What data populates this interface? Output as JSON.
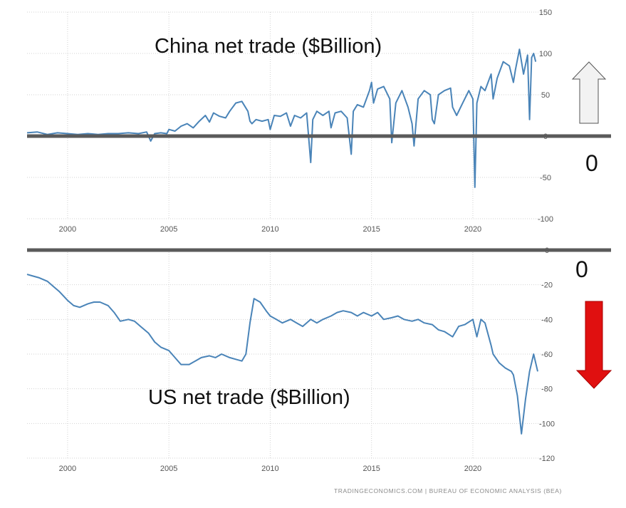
{
  "colors": {
    "line": "#4a84b8",
    "grid": "#d2d2d2",
    "axis_line": "#5a5a5a",
    "up_arrow": "#f2f2f2",
    "down_arrow": "#e01010"
  },
  "annotations": {
    "zero_top": "0",
    "zero_bottom": "0"
  },
  "footer": {
    "source": "TRADINGECONOMICS.COM | BUREAU OF ECONOMIC ANALYSIS (BEA)"
  },
  "chart_data": [
    {
      "type": "line",
      "title": "China net trade ($Billion)",
      "xlabel": "",
      "ylabel": "",
      "xlim": [
        1998.0,
        2023.2
      ],
      "ylim": [
        -100,
        150
      ],
      "x_ticks": [
        2000,
        2005,
        2010,
        2015,
        2020
      ],
      "y_ticks": [
        150,
        100,
        50,
        0,
        -50,
        -100
      ],
      "x_tick_labels": [
        "2000",
        "2005",
        "2010",
        "2015",
        "2020"
      ],
      "y_tick_labels": [
        "150",
        "100",
        "50",
        "0",
        "-50",
        "-100"
      ],
      "zero_line": 0,
      "series": [
        {
          "name": "China net trade",
          "x": [
            1998.0,
            1998.5,
            1999.0,
            1999.5,
            2000.0,
            2000.5,
            2001.0,
            2001.5,
            2002.0,
            2002.5,
            2003.0,
            2003.5,
            2003.9,
            2004.1,
            2004.3,
            2004.6,
            2004.9,
            2005.0,
            2005.3,
            2005.6,
            2005.9,
            2006.2,
            2006.5,
            2006.8,
            2007.0,
            2007.2,
            2007.5,
            2007.8,
            2008.0,
            2008.3,
            2008.6,
            2008.9,
            2009.0,
            2009.1,
            2009.3,
            2009.6,
            2009.9,
            2010.0,
            2010.2,
            2010.5,
            2010.8,
            2011.0,
            2011.2,
            2011.5,
            2011.8,
            2012.0,
            2012.1,
            2012.3,
            2012.6,
            2012.9,
            2013.0,
            2013.2,
            2013.5,
            2013.8,
            2014.0,
            2014.1,
            2014.3,
            2014.6,
            2014.9,
            2015.0,
            2015.1,
            2015.3,
            2015.6,
            2015.9,
            2016.0,
            2016.2,
            2016.5,
            2016.8,
            2017.0,
            2017.1,
            2017.3,
            2017.6,
            2017.9,
            2018.0,
            2018.1,
            2018.3,
            2018.6,
            2018.9,
            2019.0,
            2019.2,
            2019.5,
            2019.8,
            2020.0,
            2020.1,
            2020.2,
            2020.4,
            2020.6,
            2020.9,
            2021.0,
            2021.2,
            2021.5,
            2021.8,
            2022.0,
            2022.1,
            2022.3,
            2022.5,
            2022.7,
            2022.8,
            2022.9,
            2023.0,
            2023.1
          ],
          "values": [
            4,
            5,
            2,
            4,
            3,
            2,
            3,
            2,
            3,
            3,
            4,
            3,
            5,
            -6,
            3,
            4,
            3,
            8,
            6,
            12,
            15,
            10,
            18,
            25,
            17,
            28,
            24,
            22,
            30,
            40,
            42,
            30,
            18,
            15,
            20,
            18,
            20,
            8,
            25,
            24,
            28,
            12,
            25,
            22,
            28,
            -32,
            20,
            30,
            25,
            30,
            10,
            28,
            30,
            22,
            -22,
            30,
            38,
            35,
            55,
            65,
            40,
            57,
            60,
            45,
            -8,
            40,
            55,
            35,
            15,
            -12,
            45,
            55,
            50,
            20,
            15,
            50,
            55,
            58,
            35,
            25,
            40,
            55,
            45,
            -62,
            40,
            60,
            55,
            75,
            45,
            70,
            90,
            85,
            65,
            80,
            105,
            75,
            98,
            20,
            95,
            100,
            90
          ]
        }
      ]
    },
    {
      "type": "line",
      "title": "US net trade ($Billion)",
      "xlabel": "",
      "ylabel": "",
      "xlim": [
        1998.0,
        2023.2
      ],
      "ylim": [
        -120,
        0
      ],
      "x_ticks": [
        2000,
        2005,
        2010,
        2015,
        2020
      ],
      "y_ticks": [
        0,
        -20,
        -40,
        -60,
        -80,
        -100,
        -120
      ],
      "x_tick_labels": [
        "2000",
        "2005",
        "2010",
        "2015",
        "2020"
      ],
      "y_tick_labels": [
        "0",
        "-20",
        "-40",
        "-60",
        "-80",
        "-100",
        "-120"
      ],
      "zero_line": 0,
      "series": [
        {
          "name": "US net trade",
          "x": [
            1998.0,
            1998.3,
            1998.6,
            1999.0,
            1999.3,
            1999.6,
            2000.0,
            2000.3,
            2000.6,
            2001.0,
            2001.3,
            2001.6,
            2002.0,
            2002.3,
            2002.6,
            2003.0,
            2003.3,
            2003.6,
            2004.0,
            2004.3,
            2004.6,
            2005.0,
            2005.3,
            2005.6,
            2006.0,
            2006.3,
            2006.6,
            2007.0,
            2007.3,
            2007.6,
            2008.0,
            2008.3,
            2008.6,
            2008.8,
            2009.0,
            2009.2,
            2009.5,
            2009.8,
            2010.0,
            2010.3,
            2010.6,
            2011.0,
            2011.3,
            2011.6,
            2012.0,
            2012.3,
            2012.6,
            2013.0,
            2013.3,
            2013.6,
            2014.0,
            2014.3,
            2014.6,
            2015.0,
            2015.3,
            2015.6,
            2016.0,
            2016.3,
            2016.6,
            2017.0,
            2017.3,
            2017.6,
            2018.0,
            2018.3,
            2018.6,
            2019.0,
            2019.3,
            2019.6,
            2020.0,
            2020.2,
            2020.4,
            2020.6,
            2020.9,
            2021.0,
            2021.3,
            2021.6,
            2021.9,
            2022.0,
            2022.2,
            2022.4,
            2022.6,
            2022.8,
            2023.0,
            2023.2
          ],
          "values": [
            -14,
            -15,
            -16,
            -18,
            -21,
            -24,
            -29,
            -32,
            -33,
            -31,
            -30,
            -30,
            -32,
            -36,
            -41,
            -40,
            -41,
            -44,
            -48,
            -53,
            -56,
            -58,
            -62,
            -66,
            -66,
            -64,
            -62,
            -61,
            -62,
            -60,
            -62,
            -63,
            -64,
            -60,
            -42,
            -28,
            -30,
            -35,
            -38,
            -40,
            -42,
            -40,
            -42,
            -44,
            -40,
            -42,
            -40,
            -38,
            -36,
            -35,
            -36,
            -38,
            -36,
            -38,
            -36,
            -40,
            -39,
            -38,
            -40,
            -41,
            -40,
            -42,
            -43,
            -46,
            -47,
            -50,
            -44,
            -43,
            -40,
            -50,
            -40,
            -42,
            -55,
            -60,
            -65,
            -68,
            -70,
            -72,
            -84,
            -106,
            -86,
            -70,
            -60,
            -70
          ]
        }
      ]
    }
  ]
}
